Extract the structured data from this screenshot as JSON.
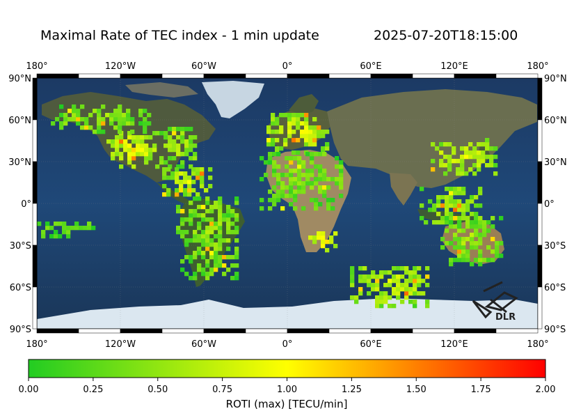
{
  "header": {
    "title": "Maximal Rate of TEC index - 1 min update",
    "timestamp": "2025-07-20T18:15:00"
  },
  "map": {
    "lon_ticks": [
      "180°",
      "120°W",
      "60°W",
      "0°",
      "60°E",
      "120°E",
      "180°"
    ],
    "lat_ticks": [
      "90°N",
      "60°N",
      "30°N",
      "0°",
      "30°S",
      "60°S",
      "90°S"
    ],
    "logo_text": "DLR"
  },
  "colorbar": {
    "ticks": [
      "0.00",
      "0.25",
      "0.50",
      "0.75",
      "1.00",
      "1.25",
      "1.50",
      "1.75",
      "2.00"
    ],
    "label": "ROTI (max) [TECU/min]",
    "colors": [
      "#22cc22",
      "#ffff00",
      "#ff0000"
    ]
  },
  "chart_data": {
    "type": "heatmap",
    "title": "Maximal Rate of TEC index - 1 min update",
    "xlabel": "",
    "ylabel": "",
    "xlim": [
      -180,
      180
    ],
    "ylim": [
      -90,
      90
    ],
    "color_range": [
      0,
      2
    ],
    "colorbar_label": "ROTI (max) [TECU/min]",
    "clusters": [
      {
        "region": "North America west",
        "lon": [
          -130,
          -95
        ],
        "lat": [
          25,
          50
        ],
        "roti": 0.85
      },
      {
        "region": "North America east",
        "lon": [
          -95,
          -65
        ],
        "lat": [
          25,
          55
        ],
        "roti": 0.55
      },
      {
        "region": "Alaska/Canada",
        "lon": [
          -170,
          -100
        ],
        "lat": [
          50,
          70
        ],
        "roti": 0.45
      },
      {
        "region": "Caribbean",
        "lon": [
          -90,
          -55
        ],
        "lat": [
          5,
          25
        ],
        "roti": 0.75
      },
      {
        "region": "South America",
        "lon": [
          -80,
          -35
        ],
        "lat": [
          -55,
          5
        ],
        "roti": 0.45
      },
      {
        "region": "Europe",
        "lon": [
          -15,
          30
        ],
        "lat": [
          35,
          65
        ],
        "roti": 0.75
      },
      {
        "region": "Africa north/west",
        "lon": [
          -20,
          40
        ],
        "lat": [
          -5,
          35
        ],
        "roti": 0.4
      },
      {
        "region": "Southern Africa",
        "lon": [
          15,
          35
        ],
        "lat": [
          -35,
          -20
        ],
        "roti": 1.05
      },
      {
        "region": "Japan/East Asia",
        "lon": [
          100,
          150
        ],
        "lat": [
          20,
          45
        ],
        "roti": 0.75
      },
      {
        "region": "SE Asia",
        "lon": [
          95,
          140
        ],
        "lat": [
          -15,
          10
        ],
        "roti": 0.6
      },
      {
        "region": "Australia",
        "lon": [
          110,
          155
        ],
        "lat": [
          -45,
          -10
        ],
        "roti": 0.5
      },
      {
        "region": "Pacific islands",
        "lon": [
          -180,
          -140
        ],
        "lat": [
          -25,
          -15
        ],
        "roti": 0.3
      },
      {
        "region": "Southern Ocean",
        "lon": [
          45,
          100
        ],
        "lat": [
          -75,
          -45
        ],
        "roti": 0.7
      }
    ]
  }
}
